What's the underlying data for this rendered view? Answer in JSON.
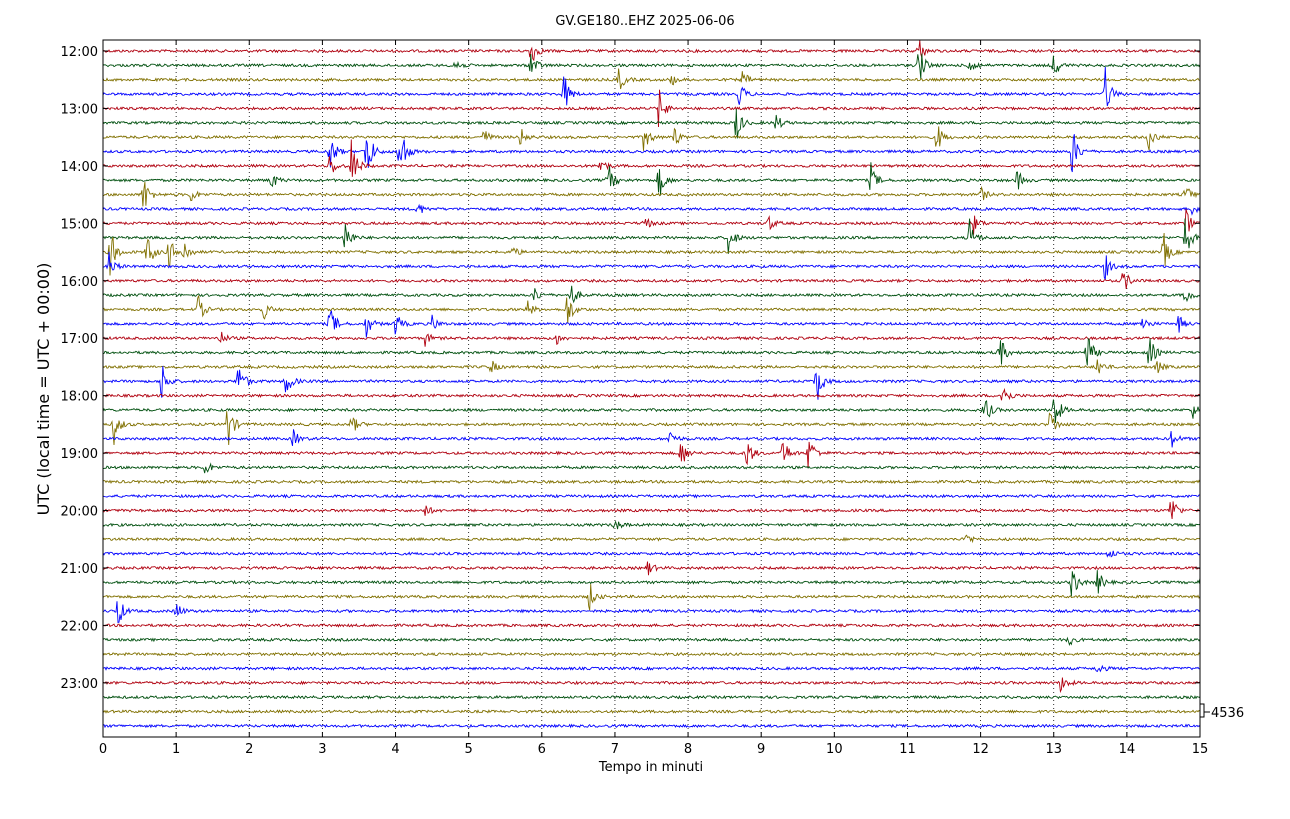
{
  "chart_data": {
    "type": "line",
    "title": "GV.GE180..EHZ 2025-06-06",
    "xlabel": "Tempo in minuti",
    "ylabel": "UTC (local time = UTC + 00:00)",
    "xlim": [
      0,
      15
    ],
    "x_ticks": [
      "0",
      "1",
      "2",
      "3",
      "4",
      "5",
      "6",
      "7",
      "8",
      "9",
      "10",
      "11",
      "12",
      "13",
      "14",
      "15"
    ],
    "y_ticks": [
      "12:00",
      "13:00",
      "14:00",
      "15:00",
      "16:00",
      "17:00",
      "18:00",
      "19:00",
      "20:00",
      "21:00",
      "22:00",
      "23:00"
    ],
    "vertical_gridlines": "dotted, every 1 minute",
    "trace_interval_minutes": 15,
    "series_colors": [
      "#b0000f",
      "#00500f",
      "#807000",
      "#0000ff"
    ],
    "scale_label": "4536",
    "traces": [
      {
        "start": "12:00",
        "color_index": 0,
        "events": [
          [
            5.85,
            1.2
          ],
          [
            11.15,
            1.0
          ]
        ]
      },
      {
        "start": "12:15",
        "color_index": 1,
        "events": [
          [
            4.8,
            0.8
          ],
          [
            5.85,
            1.1
          ],
          [
            11.15,
            1.7
          ],
          [
            11.85,
            1.0
          ],
          [
            13.0,
            1.0
          ]
        ]
      },
      {
        "start": "12:30",
        "color_index": 2,
        "events": [
          [
            7.05,
            1.0
          ],
          [
            7.75,
            0.6
          ],
          [
            8.75,
            0.7
          ]
        ]
      },
      {
        "start": "12:45",
        "color_index": 3,
        "events": [
          [
            6.3,
            1.6
          ],
          [
            8.7,
            1.0
          ],
          [
            13.7,
            2.0
          ]
        ]
      },
      {
        "start": "13:00",
        "color_index": 0,
        "events": [
          [
            7.6,
            1.5
          ]
        ]
      },
      {
        "start": "13:15",
        "color_index": 1,
        "events": [
          [
            8.65,
            1.6
          ],
          [
            9.2,
            0.7
          ]
        ]
      },
      {
        "start": "13:30",
        "color_index": 2,
        "events": [
          [
            5.2,
            0.7
          ],
          [
            5.7,
            0.8
          ],
          [
            7.4,
            1.2
          ],
          [
            7.8,
            1.0
          ],
          [
            11.4,
            1.2
          ],
          [
            14.3,
            1.0
          ]
        ]
      },
      {
        "start": "13:45",
        "color_index": 3,
        "events": [
          [
            3.1,
            1.6
          ],
          [
            3.6,
            2.5
          ],
          [
            4.05,
            3.0
          ],
          [
            13.25,
            2.0
          ]
        ]
      },
      {
        "start": "14:00",
        "color_index": 0,
        "events": [
          [
            3.1,
            1.0
          ],
          [
            3.4,
            2.0
          ],
          [
            6.8,
            0.7
          ]
        ]
      },
      {
        "start": "14:15",
        "color_index": 1,
        "events": [
          [
            2.3,
            0.7
          ],
          [
            6.9,
            1.5
          ],
          [
            7.6,
            1.5
          ],
          [
            10.5,
            1.2
          ],
          [
            12.5,
            0.8
          ]
        ]
      },
      {
        "start": "14:30",
        "color_index": 2,
        "events": [
          [
            0.55,
            1.6
          ],
          [
            1.2,
            0.6
          ],
          [
            12.0,
            0.6
          ],
          [
            14.8,
            0.8
          ]
        ]
      },
      {
        "start": "14:45",
        "color_index": 3,
        "events": [
          [
            4.3,
            0.6
          ],
          [
            14.9,
            0.6
          ]
        ]
      },
      {
        "start": "15:00",
        "color_index": 0,
        "events": [
          [
            7.4,
            0.6
          ],
          [
            9.1,
            0.6
          ],
          [
            11.9,
            0.8
          ],
          [
            14.8,
            1.2
          ]
        ]
      },
      {
        "start": "15:15",
        "color_index": 1,
        "events": [
          [
            3.3,
            1.6
          ],
          [
            8.55,
            1.3
          ],
          [
            11.85,
            1.4
          ],
          [
            14.8,
            1.7
          ]
        ]
      },
      {
        "start": "15:30",
        "color_index": 2,
        "events": [
          [
            0.1,
            1.8
          ],
          [
            0.6,
            1.6
          ],
          [
            0.9,
            1.2
          ],
          [
            1.1,
            1.0
          ],
          [
            5.6,
            0.5
          ],
          [
            14.5,
            1.5
          ]
        ]
      },
      {
        "start": "15:45",
        "color_index": 3,
        "events": [
          [
            0.08,
            1.0
          ],
          [
            13.7,
            1.0
          ]
        ]
      },
      {
        "start": "16:00",
        "color_index": 0,
        "events": [
          [
            13.95,
            1.0
          ]
        ]
      },
      {
        "start": "16:15",
        "color_index": 1,
        "events": [
          [
            5.9,
            0.6
          ],
          [
            6.4,
            0.9
          ],
          [
            14.8,
            0.8
          ]
        ]
      },
      {
        "start": "16:30",
        "color_index": 2,
        "events": [
          [
            1.3,
            1.1
          ],
          [
            2.2,
            0.7
          ],
          [
            5.8,
            0.7
          ],
          [
            6.35,
            1.4
          ]
        ]
      },
      {
        "start": "16:45",
        "color_index": 3,
        "events": [
          [
            3.1,
            1.5
          ],
          [
            3.6,
            1.0
          ],
          [
            4.0,
            0.9
          ],
          [
            4.5,
            0.6
          ],
          [
            14.2,
            0.8
          ],
          [
            14.7,
            0.7
          ]
        ]
      },
      {
        "start": "17:00",
        "color_index": 0,
        "events": [
          [
            1.6,
            0.6
          ],
          [
            4.4,
            0.6
          ],
          [
            6.2,
            0.5
          ]
        ]
      },
      {
        "start": "17:15",
        "color_index": 1,
        "events": [
          [
            12.25,
            1.6
          ],
          [
            13.45,
            1.7
          ],
          [
            14.3,
            1.4
          ]
        ]
      },
      {
        "start": "17:30",
        "color_index": 2,
        "events": [
          [
            5.3,
            0.6
          ],
          [
            13.6,
            0.8
          ],
          [
            14.4,
            0.6
          ]
        ]
      },
      {
        "start": "17:45",
        "color_index": 3,
        "events": [
          [
            0.8,
            1.6
          ],
          [
            1.85,
            1.7
          ],
          [
            2.5,
            1.3
          ],
          [
            9.75,
            2.0
          ]
        ]
      },
      {
        "start": "18:00",
        "color_index": 0,
        "events": [
          [
            12.3,
            1.2
          ]
        ]
      },
      {
        "start": "18:15",
        "color_index": 1,
        "events": [
          [
            12.05,
            1.3
          ],
          [
            13.0,
            1.8
          ],
          [
            14.9,
            0.6
          ]
        ]
      },
      {
        "start": "18:30",
        "color_index": 2,
        "events": [
          [
            0.15,
            1.4
          ],
          [
            1.7,
            2.0
          ],
          [
            3.4,
            0.8
          ],
          [
            12.95,
            1.2
          ]
        ]
      },
      {
        "start": "18:45",
        "color_index": 3,
        "events": [
          [
            2.6,
            0.7
          ],
          [
            7.75,
            0.7
          ],
          [
            14.6,
            0.8
          ]
        ]
      },
      {
        "start": "19:00",
        "color_index": 0,
        "events": [
          [
            7.9,
            1.2
          ],
          [
            8.8,
            1.3
          ],
          [
            9.3,
            1.2
          ],
          [
            9.65,
            1.6
          ]
        ]
      },
      {
        "start": "19:15",
        "color_index": 1,
        "events": [
          [
            1.4,
            0.6
          ]
        ]
      },
      {
        "start": "19:30",
        "color_index": 2,
        "events": []
      },
      {
        "start": "19:45",
        "color_index": 3,
        "events": []
      },
      {
        "start": "20:00",
        "color_index": 0,
        "events": [
          [
            4.4,
            0.5
          ],
          [
            14.6,
            1.4
          ]
        ]
      },
      {
        "start": "20:15",
        "color_index": 1,
        "events": [
          [
            7.0,
            0.5
          ]
        ]
      },
      {
        "start": "20:30",
        "color_index": 2,
        "events": [
          [
            11.8,
            0.5
          ]
        ]
      },
      {
        "start": "20:45",
        "color_index": 3,
        "events": [
          [
            13.75,
            0.5
          ]
        ]
      },
      {
        "start": "21:00",
        "color_index": 0,
        "events": [
          [
            7.45,
            0.6
          ]
        ]
      },
      {
        "start": "21:15",
        "color_index": 1,
        "events": [
          [
            13.25,
            1.3
          ],
          [
            13.6,
            0.9
          ],
          [
            15.0,
            0.8
          ]
        ]
      },
      {
        "start": "21:30",
        "color_index": 2,
        "events": [
          [
            6.65,
            1.1
          ]
        ]
      },
      {
        "start": "21:45",
        "color_index": 3,
        "events": [
          [
            0.2,
            1.3
          ],
          [
            1.0,
            0.7
          ]
        ]
      },
      {
        "start": "22:00",
        "color_index": 0,
        "events": []
      },
      {
        "start": "22:15",
        "color_index": 1,
        "events": [
          [
            13.2,
            0.5
          ]
        ]
      },
      {
        "start": "22:30",
        "color_index": 2,
        "events": []
      },
      {
        "start": "22:45",
        "color_index": 3,
        "events": [
          [
            13.6,
            0.5
          ]
        ]
      },
      {
        "start": "23:00",
        "color_index": 0,
        "events": [
          [
            13.1,
            0.8
          ]
        ]
      },
      {
        "start": "23:15",
        "color_index": 1,
        "events": []
      },
      {
        "start": "23:30",
        "color_index": 2,
        "events": []
      },
      {
        "start": "23:45",
        "color_index": 3,
        "events": []
      }
    ]
  }
}
